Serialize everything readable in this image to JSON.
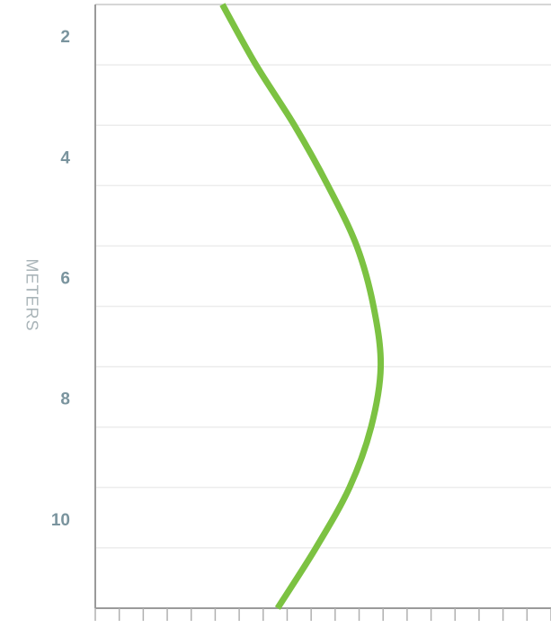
{
  "chart_data": {
    "type": "line",
    "y_label": "METERS",
    "x": [
      5.3,
      6.7,
      8.3,
      9.7,
      10.9,
      11.6,
      11.9,
      11.5,
      10.6,
      9.2,
      7.6
    ],
    "y": [
      1,
      2,
      3,
      4,
      5,
      6,
      7,
      8,
      9,
      10,
      11
    ],
    "color": "#7cc242",
    "xlim": [
      0,
      19
    ],
    "xticks": [
      0,
      1,
      2,
      3,
      4,
      5,
      6,
      7,
      8,
      9,
      10,
      11,
      12,
      13,
      14,
      15,
      16,
      17,
      18,
      19
    ],
    "ylim": [
      1,
      11
    ],
    "y_reversed": true,
    "yticks": [
      2,
      4,
      6,
      8,
      10
    ],
    "minor_yticks": [
      3,
      5,
      7,
      9
    ],
    "grid": true
  }
}
